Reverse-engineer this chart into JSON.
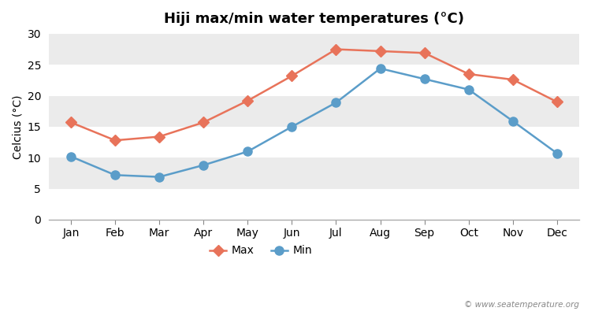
{
  "title": "Hiji max/min water temperatures (°C)",
  "ylabel": "Celcius (°C)",
  "months": [
    "Jan",
    "Feb",
    "Mar",
    "Apr",
    "May",
    "Jun",
    "Jul",
    "Aug",
    "Sep",
    "Oct",
    "Nov",
    "Dec"
  ],
  "max_temps": [
    15.7,
    12.8,
    13.4,
    15.7,
    19.2,
    23.2,
    27.5,
    27.2,
    26.9,
    23.5,
    22.6,
    19.0
  ],
  "min_temps": [
    10.2,
    7.2,
    6.9,
    8.8,
    11.0,
    15.0,
    18.9,
    24.4,
    22.7,
    21.0,
    15.9,
    10.7
  ],
  "max_color": "#e8735a",
  "min_color": "#5b9dc9",
  "bg_color": "#ffffff",
  "band_colors": [
    "#ffffff",
    "#ebebeb"
  ],
  "ylim": [
    0,
    30
  ],
  "yticks": [
    0,
    5,
    10,
    15,
    20,
    25,
    30
  ],
  "watermark": "© www.seatemperature.org",
  "legend_max": "Max",
  "legend_min": "Min",
  "title_fontsize": 13,
  "label_fontsize": 10,
  "tick_fontsize": 10,
  "max_marker": "D",
  "min_marker": "o",
  "max_markersize": 7,
  "min_markersize": 8,
  "linewidth": 1.8
}
